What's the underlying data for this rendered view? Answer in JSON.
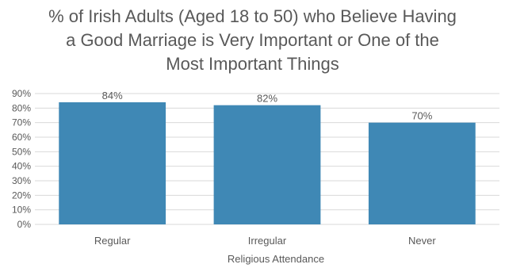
{
  "chart_data": {
    "type": "bar",
    "title_lines": [
      "% of Irish Adults (Aged 18 to 50) who Believe Having",
      "a Good Marriage is Very Important or One of the",
      "Most Important Things"
    ],
    "categories": [
      "Regular",
      "Irregular",
      "Never"
    ],
    "values": [
      84,
      82,
      70
    ],
    "data_labels": [
      "84%",
      "82%",
      "70%"
    ],
    "xlabel": "Religious Attendance",
    "ylabel": "",
    "ylim": [
      0,
      90
    ],
    "yticks": [
      0,
      10,
      20,
      30,
      40,
      50,
      60,
      70,
      80,
      90
    ],
    "ytick_labels": [
      "0%",
      "10%",
      "20%",
      "30%",
      "40%",
      "50%",
      "60%",
      "70%",
      "80%",
      "90%"
    ],
    "grid": true,
    "legend": "none",
    "bar_color": "#3F88B5",
    "grid_color": "#D9D9D9",
    "text_color": "#595959"
  }
}
